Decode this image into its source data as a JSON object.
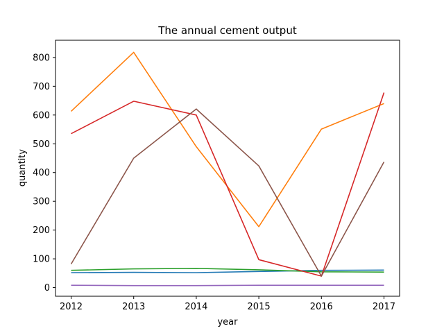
{
  "chart_data": {
    "type": "line",
    "title": "The annual cement output",
    "xlabel": "year",
    "ylabel": "quantity",
    "x": [
      2012,
      2013,
      2014,
      2015,
      2016,
      2017
    ],
    "xlim": [
      2011.75,
      2017.25
    ],
    "ylim": [
      -30,
      860
    ],
    "yticks": [
      0,
      100,
      200,
      300,
      400,
      500,
      600,
      700,
      800
    ],
    "grid": false,
    "legend": "none",
    "series": [
      {
        "color": "#1f77b4",
        "values": [
          52,
          53,
          52,
          56,
          60,
          61
        ]
      },
      {
        "color": "#ff7f0e",
        "values": [
          613,
          818,
          490,
          212,
          551,
          640
        ]
      },
      {
        "color": "#2ca02c",
        "values": [
          60,
          65,
          67,
          62,
          55,
          54
        ]
      },
      {
        "color": "#d62728",
        "values": [
          535,
          648,
          600,
          97,
          40,
          678
        ]
      },
      {
        "color": "#9467bd",
        "values": [
          8,
          7,
          7,
          8,
          8,
          8
        ]
      },
      {
        "color": "#8c564b",
        "values": [
          82,
          450,
          621,
          423,
          40,
          437
        ]
      }
    ]
  }
}
